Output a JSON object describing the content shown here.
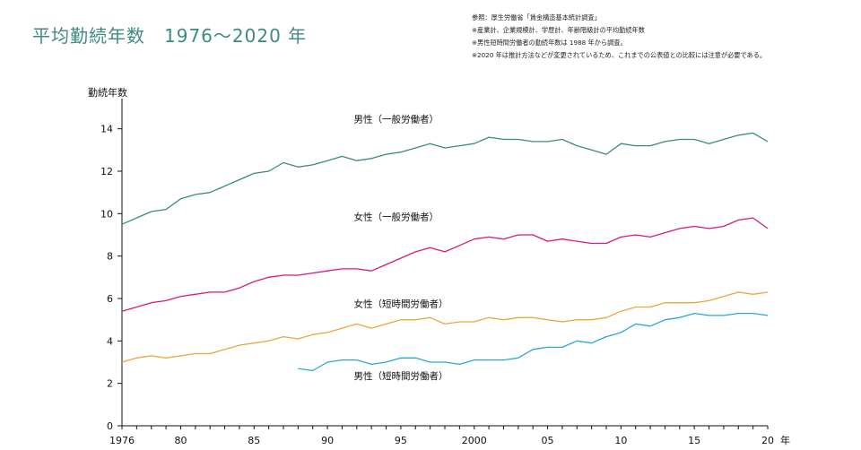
{
  "page": {
    "title": "平均勤続年数　1976〜2020 年",
    "notes": [
      "参照：厚生労働省「賃金構造基本統計調査」",
      "※産業計、企業規模計、学歴計、年齢階級計の平均勤続年数",
      "※男性短時間労働者の勤続年数は 1988 年から調査。",
      "※2020 年は推計方法などが変更されているため、これまでの公表値との比較には注意が必要である。"
    ]
  },
  "chart_data": {
    "type": "line",
    "title": "平均勤続年数　1976〜2020 年",
    "ylabel": "勤続年数",
    "xlabel": "年",
    "xlim": [
      1976,
      2020
    ],
    "ylim": [
      0,
      15
    ],
    "yticks": [
      0,
      2,
      4,
      6,
      8,
      10,
      12,
      14
    ],
    "xticks": [
      {
        "value": 1976,
        "label": "1976"
      },
      {
        "value": 1980,
        "label": "80"
      },
      {
        "value": 1985,
        "label": "85"
      },
      {
        "value": 1990,
        "label": "90"
      },
      {
        "value": 1995,
        "label": "95"
      },
      {
        "value": 2000,
        "label": "2000"
      },
      {
        "value": 2005,
        "label": "05"
      },
      {
        "value": 2010,
        "label": "10"
      },
      {
        "value": 2015,
        "label": "15"
      },
      {
        "value": 2020,
        "label": "20"
      }
    ],
    "series": [
      {
        "name": "男性（一般労働者）",
        "color": "#3c8a82",
        "label_at": [
          1991,
          14.3
        ],
        "x": [
          1976,
          1977,
          1978,
          1979,
          1980,
          1981,
          1982,
          1983,
          1984,
          1985,
          1986,
          1987,
          1988,
          1989,
          1990,
          1991,
          1992,
          1993,
          1994,
          1995,
          1996,
          1997,
          1998,
          1999,
          2000,
          2001,
          2002,
          2003,
          2004,
          2005,
          2006,
          2007,
          2008,
          2009,
          2010,
          2011,
          2012,
          2013,
          2014,
          2015,
          2016,
          2017,
          2018,
          2019,
          2020
        ],
        "values": [
          9.5,
          9.8,
          10.1,
          10.2,
          10.7,
          10.9,
          11.0,
          11.3,
          11.6,
          11.9,
          12.0,
          12.4,
          12.2,
          12.3,
          12.5,
          12.7,
          12.5,
          12.6,
          12.8,
          12.9,
          13.1,
          13.3,
          13.1,
          13.2,
          13.3,
          13.6,
          13.5,
          13.5,
          13.4,
          13.4,
          13.5,
          13.2,
          13.0,
          12.8,
          13.3,
          13.2,
          13.2,
          13.4,
          13.5,
          13.5,
          13.3,
          13.5,
          13.7,
          13.8,
          13.4
        ]
      },
      {
        "name": "女性（一般労働者）",
        "color": "#d81b79",
        "label_at": [
          1991,
          9.7
        ],
        "x": [
          1976,
          1977,
          1978,
          1979,
          1980,
          1981,
          1982,
          1983,
          1984,
          1985,
          1986,
          1987,
          1988,
          1989,
          1990,
          1991,
          1992,
          1993,
          1994,
          1995,
          1996,
          1997,
          1998,
          1999,
          2000,
          2001,
          2002,
          2003,
          2004,
          2005,
          2006,
          2007,
          2008,
          2009,
          2010,
          2011,
          2012,
          2013,
          2014,
          2015,
          2016,
          2017,
          2018,
          2019,
          2020
        ],
        "values": [
          5.4,
          5.6,
          5.8,
          5.9,
          6.1,
          6.2,
          6.3,
          6.3,
          6.5,
          6.8,
          7.0,
          7.1,
          7.1,
          7.2,
          7.3,
          7.4,
          7.4,
          7.3,
          7.6,
          7.9,
          8.2,
          8.4,
          8.2,
          8.5,
          8.8,
          8.9,
          8.8,
          9.0,
          9.0,
          8.7,
          8.8,
          8.7,
          8.6,
          8.6,
          8.9,
          9.0,
          8.9,
          9.1,
          9.3,
          9.4,
          9.3,
          9.4,
          9.7,
          9.8,
          9.3
        ]
      },
      {
        "name": "女性（短時間労働者）",
        "color": "#e8a93b",
        "label_at": [
          1991,
          5.6
        ],
        "x": [
          1976,
          1977,
          1978,
          1979,
          1980,
          1981,
          1982,
          1983,
          1984,
          1985,
          1986,
          1987,
          1988,
          1989,
          1990,
          1991,
          1992,
          1993,
          1994,
          1995,
          1996,
          1997,
          1998,
          1999,
          2000,
          2001,
          2002,
          2003,
          2004,
          2005,
          2006,
          2007,
          2008,
          2009,
          2010,
          2011,
          2012,
          2013,
          2014,
          2015,
          2016,
          2017,
          2018,
          2019,
          2020
        ],
        "values": [
          3.0,
          3.2,
          3.3,
          3.2,
          3.3,
          3.4,
          3.4,
          3.6,
          3.8,
          3.9,
          4.0,
          4.2,
          4.1,
          4.3,
          4.4,
          4.6,
          4.8,
          4.6,
          4.8,
          5.0,
          5.0,
          5.1,
          4.8,
          4.9,
          4.9,
          5.1,
          5.0,
          5.1,
          5.1,
          5.0,
          4.9,
          5.0,
          5.0,
          5.1,
          5.4,
          5.6,
          5.6,
          5.8,
          5.8,
          5.8,
          5.9,
          6.1,
          6.3,
          6.2,
          6.3
        ]
      },
      {
        "name": "男性（短時間労働者）",
        "color": "#2aa8d0",
        "label_at": [
          1991,
          2.2
        ],
        "x": [
          1988,
          1989,
          1990,
          1991,
          1992,
          1993,
          1994,
          1995,
          1996,
          1997,
          1998,
          1999,
          2000,
          2001,
          2002,
          2003,
          2004,
          2005,
          2006,
          2007,
          2008,
          2009,
          2010,
          2011,
          2012,
          2013,
          2014,
          2015,
          2016,
          2017,
          2018,
          2019,
          2020
        ],
        "values": [
          2.7,
          2.6,
          3.0,
          3.1,
          3.1,
          2.9,
          3.0,
          3.2,
          3.2,
          3.0,
          3.0,
          2.9,
          3.1,
          3.1,
          3.1,
          3.2,
          3.6,
          3.7,
          3.7,
          4.0,
          3.9,
          4.2,
          4.4,
          4.8,
          4.7,
          5.0,
          5.1,
          5.3,
          5.2,
          5.2,
          5.3,
          5.3,
          5.2
        ]
      }
    ]
  }
}
